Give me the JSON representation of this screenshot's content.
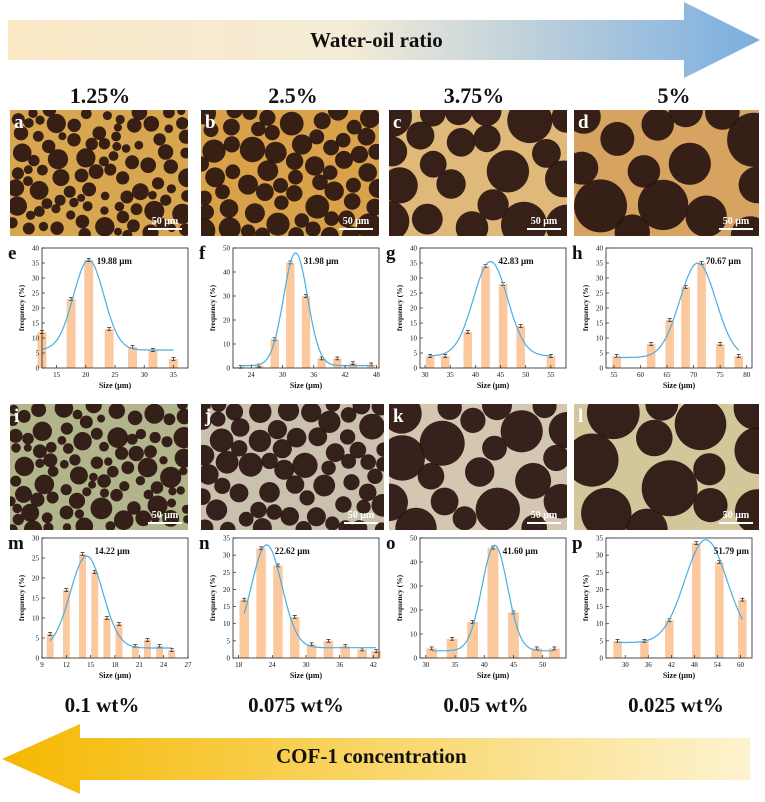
{
  "top_arrow": {
    "label": "Water-oil ratio",
    "color_start": "#fbe9c6",
    "color_end": "#7aaee0"
  },
  "bottom_arrow": {
    "label": "COF-1 concentration",
    "color_start": "#f5b800",
    "color_end": "#fdf3cf"
  },
  "ratios": [
    "1.25%",
    "2.5%",
    "3.75%",
    "5%"
  ],
  "concentrations": [
    "0.1 wt%",
    "0.075 wt%",
    "0.05 wt%",
    "0.025 wt%"
  ],
  "scale_bar_label": "50 μm",
  "colors": {
    "bar": "#fcc99f",
    "fit": "#4aaee0",
    "errbar": "#333333",
    "oil_bg": "#d7a84e",
    "green_bg": "#a9b48a",
    "gray_bg": "#c9c4ba",
    "particle": "#2a1410"
  },
  "micrographs": [
    {
      "letter": "a",
      "bg": "#d8a650",
      "density": "many-small"
    },
    {
      "letter": "b",
      "bg": "#d9a24a",
      "density": "many-medium"
    },
    {
      "letter": "c",
      "bg": "#dfb97a",
      "density": "few-large"
    },
    {
      "letter": "d",
      "bg": "#d6a460",
      "density": "few-xlarge"
    },
    {
      "letter": "i",
      "bg": "#b2b58c",
      "density": "many-small"
    },
    {
      "letter": "j",
      "bg": "#c9c0ae",
      "density": "many-medium"
    },
    {
      "letter": "k",
      "bg": "#d3c7b2",
      "density": "few-large"
    },
    {
      "letter": "l",
      "bg": "#d2c79b",
      "density": "few-xlarge"
    }
  ],
  "chart_data": [
    {
      "letter": "e",
      "type": "bar",
      "title": "19.88 μm",
      "xlabel": "Size (μm)",
      "ylabel": "frequency (%)",
      "xlim": [
        12.5,
        37.5
      ],
      "ylim": [
        0,
        40
      ],
      "xticks": [
        15,
        20,
        25,
        30,
        35
      ],
      "yticks": [
        0,
        5,
        10,
        15,
        20,
        25,
        30,
        35,
        40
      ],
      "x": [
        12.5,
        17.5,
        20.5,
        24,
        28,
        31.5,
        35
      ],
      "values": [
        12,
        23,
        36,
        13,
        7,
        6,
        3
      ],
      "barwidth": 1.8,
      "fit": {
        "mu": 20.5,
        "sigma": 2.6,
        "amp": 30,
        "base": 6
      }
    },
    {
      "letter": "f",
      "type": "bar",
      "title": "31.98 μm",
      "xlabel": "Size (μm)",
      "ylabel": "frequency (%)",
      "xlim": [
        20.5,
        48.5
      ],
      "ylim": [
        0,
        50
      ],
      "xticks": [
        24,
        30,
        36,
        42,
        48
      ],
      "yticks": [
        0,
        10,
        20,
        30,
        40,
        50
      ],
      "x": [
        22,
        25.5,
        28.5,
        31.5,
        34.5,
        37.5,
        40.5,
        43.5,
        47
      ],
      "values": [
        0.5,
        1,
        12,
        44,
        30,
        4,
        4,
        2,
        1.5
      ],
      "barwidth": 1.9,
      "fit": {
        "mu": 32.5,
        "sigma": 2.3,
        "amp": 47,
        "base": 1
      }
    },
    {
      "letter": "g",
      "type": "bar",
      "title": "42.83 μm",
      "xlabel": "Size (μm)",
      "ylabel": "frequency (%)",
      "xlim": [
        29,
        58
      ],
      "ylim": [
        0,
        40
      ],
      "xticks": [
        30,
        35,
        40,
        45,
        50,
        55
      ],
      "yticks": [
        0,
        5,
        10,
        15,
        20,
        25,
        30,
        35,
        40
      ],
      "x": [
        31,
        34,
        38.5,
        42,
        45.5,
        49,
        55
      ],
      "values": [
        4,
        4,
        12,
        34,
        28,
        14,
        4
      ],
      "barwidth": 2.0,
      "fit": {
        "mu": 43,
        "sigma": 3.4,
        "amp": 31.5,
        "base": 4
      }
    },
    {
      "letter": "h",
      "type": "bar",
      "title": "70.67 μm",
      "xlabel": "Size (μm)",
      "ylabel": "frequency (%)",
      "xlim": [
        53.5,
        81
      ],
      "ylim": [
        0,
        40
      ],
      "xticks": [
        55,
        60,
        65,
        70,
        75,
        80
      ],
      "yticks": [
        0,
        5,
        10,
        15,
        20,
        25,
        30,
        35,
        40
      ],
      "x": [
        55.5,
        62,
        65.5,
        68.5,
        71.5,
        75,
        78.5
      ],
      "values": [
        4,
        8,
        16,
        27,
        35,
        8,
        4
      ],
      "barwidth": 1.9,
      "fit": {
        "mu": 70.8,
        "sigma": 3.4,
        "amp": 31.5,
        "base": 3.5
      }
    },
    {
      "letter": "m",
      "type": "bar",
      "title": "14.22 μm",
      "xlabel": "Size (μm)",
      "ylabel": "frequency (%)",
      "xlim": [
        9,
        27
      ],
      "ylim": [
        0,
        30
      ],
      "xticks": [
        9,
        12,
        15,
        18,
        21,
        24,
        27
      ],
      "yticks": [
        0,
        5,
        10,
        15,
        20,
        25,
        30
      ],
      "x": [
        10,
        12,
        14,
        15.5,
        17,
        18.5,
        20.5,
        22,
        23.5,
        25
      ],
      "values": [
        6,
        17,
        26,
        21.5,
        10,
        8.5,
        3,
        4.5,
        3,
        2
      ],
      "barwidth": 1.0,
      "fit": {
        "mu": 14.5,
        "sigma": 2.0,
        "amp": 23,
        "base": 2.5
      }
    },
    {
      "letter": "n",
      "type": "bar",
      "title": "22.62 μm",
      "xlabel": "Size (μm)",
      "ylabel": "frequency (%)",
      "xlim": [
        17,
        43
      ],
      "ylim": [
        0,
        35
      ],
      "xticks": [
        18,
        24,
        30,
        36,
        42
      ],
      "yticks": [
        0,
        5,
        10,
        15,
        20,
        25,
        30,
        35
      ],
      "x": [
        19,
        22,
        25,
        28,
        31,
        34,
        37,
        40,
        42.5
      ],
      "values": [
        17,
        32,
        27,
        12,
        4,
        5,
        3.5,
        2.5,
        2
      ],
      "barwidth": 2.0,
      "fit": {
        "mu": 23,
        "sigma": 2.7,
        "amp": 30,
        "base": 3
      }
    },
    {
      "letter": "o",
      "type": "bar",
      "title": "41.60 μm",
      "xlabel": "Size (μm)",
      "ylabel": "frequency (%)",
      "xlim": [
        29,
        54
      ],
      "ylim": [
        0,
        50
      ],
      "xticks": [
        30,
        35,
        40,
        45,
        50
      ],
      "yticks": [
        0,
        10,
        20,
        30,
        40,
        50
      ],
      "x": [
        31,
        34.5,
        38,
        41.5,
        45,
        49,
        52
      ],
      "values": [
        4,
        8,
        15,
        46,
        19,
        4,
        4
      ],
      "barwidth": 2.2,
      "fit": {
        "mu": 41.8,
        "sigma": 2.2,
        "amp": 44,
        "base": 3
      }
    },
    {
      "letter": "p",
      "type": "bar",
      "title": "51.79 μm",
      "xlabel": "Size (μm)",
      "ylabel": "frequency (%)",
      "xlim": [
        25,
        63
      ],
      "ylim": [
        0,
        35
      ],
      "xticks": [
        30,
        36,
        42,
        48,
        54,
        60
      ],
      "yticks": [
        0,
        5,
        10,
        15,
        20,
        25,
        30,
        35
      ],
      "x": [
        28,
        35,
        41.5,
        48.5,
        54.5,
        60.5
      ],
      "values": [
        5,
        5,
        11,
        33.5,
        28,
        17
      ],
      "barwidth": 2.6,
      "fit": {
        "mu": 51,
        "sigma": 5.5,
        "amp": 30,
        "base": 4.5
      }
    }
  ]
}
